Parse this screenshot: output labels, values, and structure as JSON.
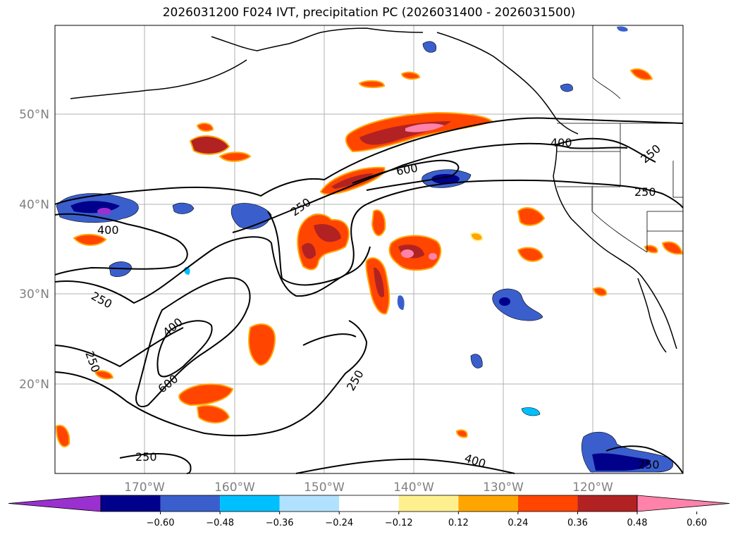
{
  "title": "2026031200 F024 IVT, precipitation PC (2026031400 - 2026031500)",
  "lat_labels": [
    "50°N",
    "40°N",
    "30°N",
    "20°N"
  ],
  "lon_labels": [
    "170°W",
    "160°W",
    "150°W",
    "140°W",
    "130°W",
    "120°W"
  ],
  "contour_labels": [
    "400",
    "250",
    "600",
    "250",
    "400",
    "250",
    "400",
    "250",
    "250",
    "600",
    "250",
    "250",
    "400",
    "250"
  ],
  "colorbar": {
    "ticks": [
      "−0.60",
      "−0.48",
      "−0.36",
      "−0.24",
      "−0.12",
      "0.12",
      "0.24",
      "0.36",
      "0.48",
      "0.60"
    ],
    "colors": [
      "#9b30d0",
      "#00008b",
      "#3a5fcd",
      "#00bfff",
      "#b0e2ff",
      "#ffffff",
      "#fff08f",
      "#ffa500",
      "#ff4500",
      "#b22222",
      "#ff82ab"
    ]
  }
}
